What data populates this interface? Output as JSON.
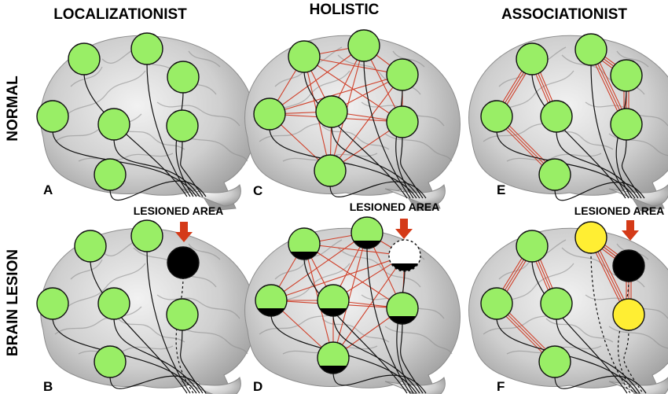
{
  "columns": [
    {
      "title": "LOCALIZATIONIST"
    },
    {
      "title": "HOLISTIC"
    },
    {
      "title": "ASSOCIATIONIST"
    }
  ],
  "rows": [
    {
      "label": "NORMAL"
    },
    {
      "label": "BRAIN LESION"
    }
  ],
  "panels": {
    "A": {
      "letter": "A"
    },
    "B": {
      "letter": "B",
      "lesion_label": "LESIONED AREA"
    },
    "C": {
      "letter": "C"
    },
    "D": {
      "letter": "D",
      "lesion_label": "LESIONED AREA"
    },
    "E": {
      "letter": "E"
    },
    "F": {
      "letter": "F",
      "lesion_label": "LESIONED AREA"
    }
  },
  "colors": {
    "healthy_node": "#99ee66",
    "lesion_node": "#000000",
    "affected_node": "#ffee33",
    "connection": "#d0402a",
    "arrow": "#d43a18",
    "brain": "#c8c8c8"
  }
}
